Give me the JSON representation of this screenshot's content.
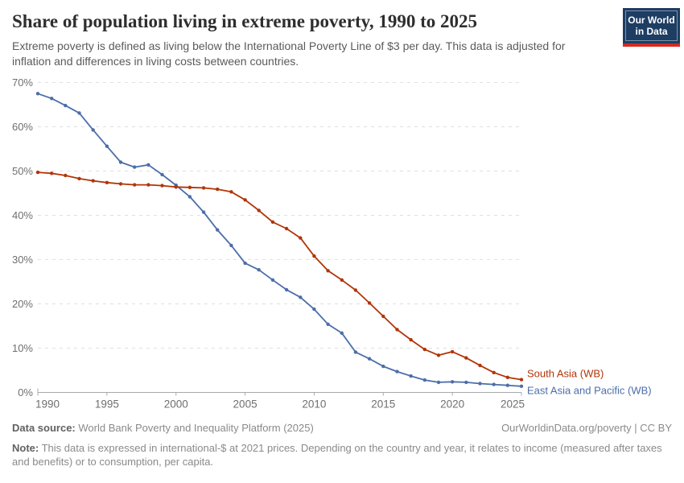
{
  "header": {
    "logo": {
      "line1": "Our World",
      "line2": "in Data"
    }
  },
  "chart_data": {
    "type": "line",
    "title": "Share of population living in extreme poverty, 1990 to 2025",
    "subtitle": "Extreme poverty is defined as living below the International Poverty Line of $3 per day. This data is adjusted for inflation and differences in living costs between countries.",
    "x": [
      1990,
      1991,
      1992,
      1993,
      1994,
      1995,
      1996,
      1997,
      1998,
      1999,
      2000,
      2001,
      2002,
      2003,
      2004,
      2005,
      2006,
      2007,
      2008,
      2009,
      2010,
      2011,
      2012,
      2013,
      2014,
      2015,
      2016,
      2017,
      2018,
      2019,
      2020,
      2021,
      2022,
      2023,
      2024,
      2025
    ],
    "series": [
      {
        "name": "South Asia (WB)",
        "color": "#B13507",
        "values": [
          49.7,
          49.5,
          49.0,
          48.3,
          47.8,
          47.4,
          47.1,
          46.9,
          46.9,
          46.7,
          46.4,
          46.3,
          46.2,
          45.9,
          45.3,
          43.5,
          41.1,
          38.5,
          37.0,
          34.9,
          30.8,
          27.5,
          25.4,
          23.1,
          20.2,
          17.2,
          14.2,
          11.9,
          9.7,
          8.4,
          9.2,
          7.8,
          6.1,
          4.5,
          3.4,
          2.9
        ]
      },
      {
        "name": "East Asia and Pacific (WB)",
        "color": "#4C6EA9",
        "values": [
          67.5,
          66.4,
          64.8,
          63.1,
          59.3,
          55.6,
          52.0,
          50.9,
          51.4,
          49.2,
          46.8,
          44.2,
          40.7,
          36.7,
          33.2,
          29.2,
          27.7,
          25.4,
          23.2,
          21.5,
          18.8,
          15.4,
          13.4,
          9.1,
          7.6,
          5.9,
          4.7,
          3.7,
          2.8,
          2.3,
          2.4,
          2.3,
          2.0,
          1.8,
          1.6,
          1.4
        ]
      }
    ],
    "xlim": [
      1990,
      2025
    ],
    "ylim": [
      0,
      70
    ],
    "xticks": [
      1990,
      1995,
      2000,
      2005,
      2010,
      2015,
      2020,
      2025
    ],
    "yticks": [
      0,
      10,
      20,
      30,
      40,
      50,
      60,
      70
    ],
    "ytick_suffix": "%",
    "grid": "horizontal-dashed",
    "legend_position": "line-end-labels"
  },
  "footer": {
    "datasource_label": "Data source:",
    "datasource": "World Bank Poverty and Inequality Platform (2025)",
    "link": "OurWorldinData.org/poverty | CC BY",
    "note_label": "Note:",
    "note": "This data is expressed in international-$ at 2021 prices. Depending on the country and year, it relates to income (measured after taxes and benefits) or to consumption, per capita."
  },
  "colors": {
    "title": "#2E2E2E",
    "subtitle": "#5A5A5A",
    "gridline": "#E0E0E0",
    "axis": "#A9A9A9",
    "tick_label": "#6F6F6F",
    "footer_text": "#8A8A8A",
    "logo_background": "#1D3D63",
    "logo_bar": "#D42B21",
    "south_asia": "#B13507",
    "east_asia_pacific": "#4C6EA9"
  }
}
